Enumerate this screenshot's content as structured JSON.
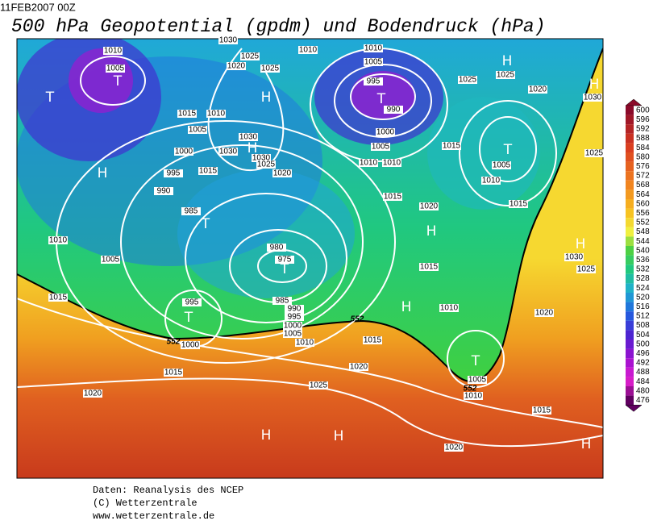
{
  "header": {
    "date": "11FEB2007 00Z",
    "title": "500 hPa Geopotential (gpdm) und Bodendruck (hPa)"
  },
  "colorbar": {
    "levels": [
      600,
      596,
      592,
      588,
      584,
      580,
      576,
      572,
      568,
      564,
      560,
      556,
      552,
      548,
      544,
      540,
      536,
      532,
      528,
      524,
      520,
      516,
      512,
      508,
      504,
      500,
      496,
      492,
      488,
      484,
      480,
      476
    ]
  },
  "map": {
    "isobar_labels": [
      "1010",
      "1005",
      "1030",
      "1020",
      "1025",
      "1025",
      "1010",
      "1010",
      "1005",
      "995",
      "990",
      "1000",
      "1005",
      "1010",
      "1010",
      "1015",
      "1025",
      "1025",
      "1020",
      "1030",
      "1025",
      "1005",
      "1010",
      "1015",
      "1020",
      "1015",
      "1015",
      "1010",
      "1005",
      "1000",
      "1030",
      "1030",
      "1030",
      "1025",
      "1015",
      "1020",
      "995",
      "990",
      "985",
      "1010",
      "1005",
      "980",
      "975",
      "1015",
      "995",
      "985",
      "990",
      "995",
      "1000",
      "1005",
      "1010",
      "1000",
      "1015",
      "1020",
      "1025",
      "1015",
      "1020",
      "1015",
      "1010",
      "1030",
      "1025",
      "1020",
      "1005",
      "1010",
      "1015",
      "1020"
    ],
    "geopotential_labels": [
      "552",
      "552",
      "552"
    ],
    "pressure_centers": [
      "T",
      "T",
      "H",
      "H",
      "H",
      "T",
      "T",
      "T",
      "T",
      "H",
      "T",
      "H",
      "H",
      "H",
      "H",
      "T",
      "H",
      "H",
      "H"
    ]
  },
  "footer": {
    "lines": [
      "Daten: Reanalysis des NCEP",
      "(C) Wetterzentrale",
      "www.wetterzentrale.de"
    ]
  }
}
